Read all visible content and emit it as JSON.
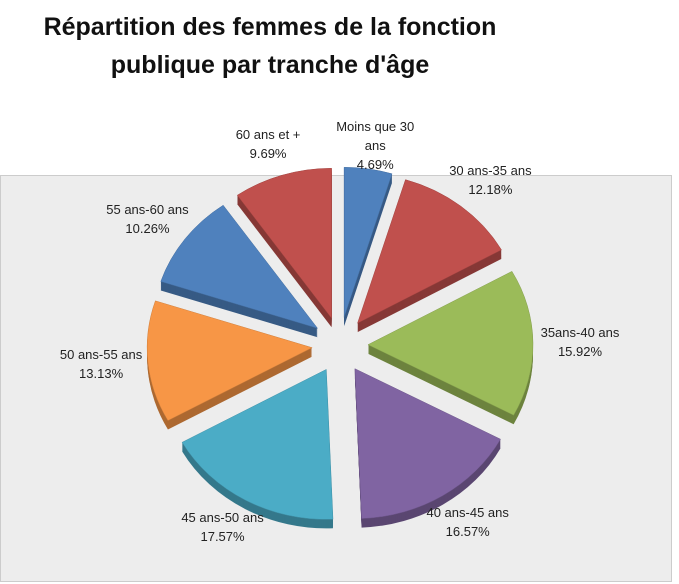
{
  "chart_data": {
    "type": "pie",
    "title": "Répartition des femmes de la fonction publique par tranche d'âge",
    "categories": [
      "Moins que 30 ans",
      "30 ans-35 ans",
      "35ans-40 ans",
      "40 ans-45 ans",
      "45 ans-50 ans",
      "50 ans-55 ans",
      "55 ans-60 ans",
      "60 ans et +"
    ],
    "values": [
      4.69,
      12.18,
      15.92,
      16.57,
      17.57,
      13.13,
      10.26,
      9.69
    ],
    "value_labels": [
      "4.69%",
      "12.18%",
      "15.92%",
      "16.57%",
      "17.57%",
      "13.13%",
      "10.26%",
      "9.69%"
    ],
    "colors": [
      "#4f81bd",
      "#c0504d",
      "#9bbb59",
      "#8064a2",
      "#4bacc6",
      "#f79646",
      "#4f81bd",
      "#c0504d"
    ]
  }
}
